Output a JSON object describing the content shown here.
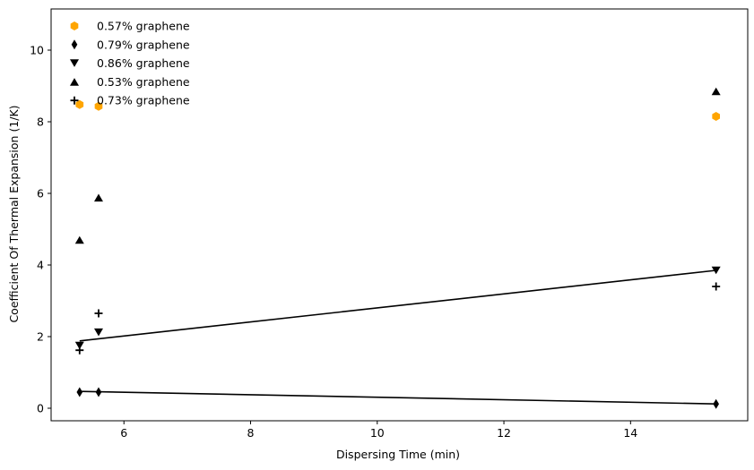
{
  "chart_data": {
    "type": "scatter",
    "title": "",
    "xlabel": "Dispersing Time (min)",
    "ylabel": "Coefficient Of Thermal Expansion (1/K)",
    "xlim": [
      4.85,
      15.85
    ],
    "ylim": [
      -0.35,
      11.15
    ],
    "xticks": [
      6,
      8,
      10,
      12,
      14
    ],
    "yticks": [
      0,
      2,
      4,
      6,
      8,
      10
    ],
    "grid": false,
    "legend_position": "top-left",
    "series": [
      {
        "name": "0.57% graphene",
        "marker": "hexagon",
        "color": "#FFA500",
        "points": [
          [
            5.3,
            8.48
          ],
          [
            5.6,
            8.43
          ],
          [
            15.35,
            8.15
          ]
        ]
      },
      {
        "name": "0.79% graphene",
        "marker": "thin-diamond",
        "color": "#000000",
        "points": [
          [
            5.3,
            0.45
          ],
          [
            5.6,
            0.45
          ],
          [
            15.35,
            0.12
          ]
        ]
      },
      {
        "name": "0.86% graphene",
        "marker": "triangle-down",
        "color": "#000000",
        "points": [
          [
            5.3,
            1.75
          ],
          [
            5.6,
            2.12
          ],
          [
            15.35,
            3.85
          ]
        ]
      },
      {
        "name": "0.53% graphene",
        "marker": "triangle-up",
        "color": "#000000",
        "points": [
          [
            5.3,
            4.7
          ],
          [
            5.6,
            5.88
          ],
          [
            15.35,
            8.85
          ]
        ]
      },
      {
        "name": "0.73% graphene",
        "marker": "plus",
        "color": "#000000",
        "points": [
          [
            5.3,
            1.62
          ],
          [
            5.6,
            2.65
          ],
          [
            15.35,
            3.4
          ]
        ]
      }
    ],
    "trend_lines": [
      {
        "color": "#000000",
        "points": [
          [
            5.3,
            1.88
          ],
          [
            15.35,
            3.85
          ]
        ]
      },
      {
        "color": "#000000",
        "points": [
          [
            5.3,
            0.47
          ],
          [
            15.35,
            0.12
          ]
        ]
      }
    ]
  }
}
